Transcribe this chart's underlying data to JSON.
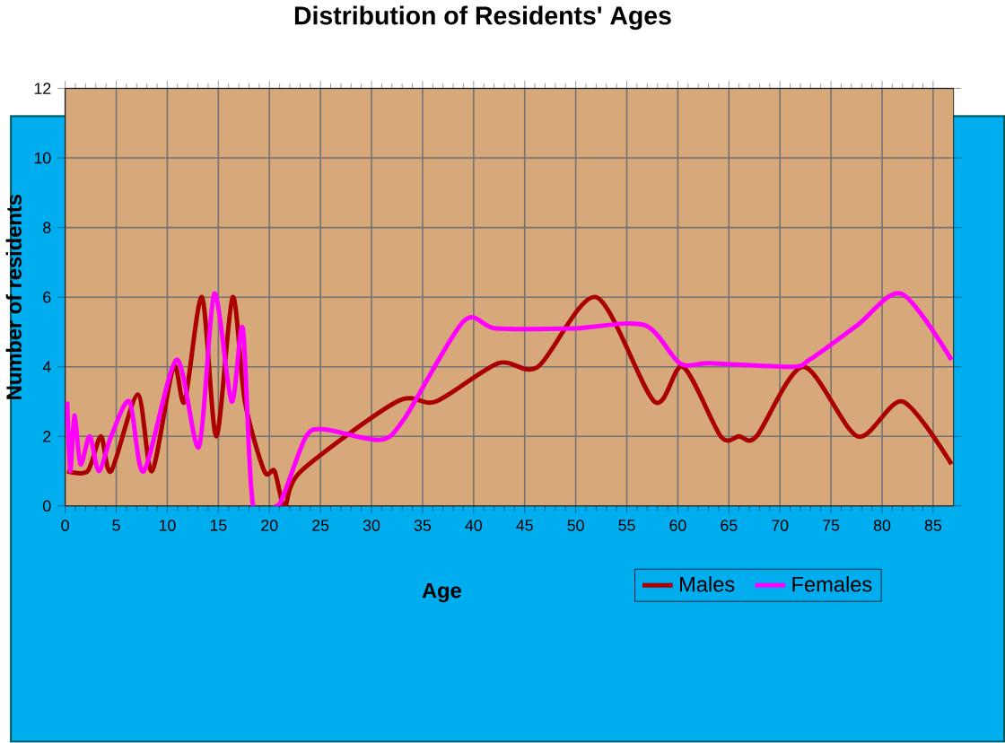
{
  "chart_data": {
    "type": "line",
    "title": "Distribution of Residents' Ages",
    "xlabel": "Age",
    "ylabel": "Number of residents",
    "xlim": [
      0,
      87
    ],
    "ylim": [
      0,
      12
    ],
    "xticks": [
      0,
      5,
      10,
      15,
      20,
      25,
      30,
      35,
      40,
      45,
      50,
      55,
      60,
      65,
      70,
      75,
      80,
      85
    ],
    "yticks": [
      0,
      2,
      4,
      6,
      8,
      10,
      12
    ],
    "grid": true,
    "legend": "bottom right",
    "marker": "none",
    "line_style": "solid",
    "series": [
      {
        "name": "Males",
        "color": "#aa0000",
        "x": [
          0.2,
          2.2,
          3.5,
          4.5,
          7.1,
          8.5,
          10.6,
          11.7,
          13.4,
          14.8,
          16.4,
          17.6,
          19.5,
          20.5,
          21.5,
          23.1,
          32.5,
          36.3,
          42.4,
          46.3,
          52,
          57.7,
          60.5,
          64.2,
          66,
          67.7,
          72.3,
          77.6,
          82,
          86.8
        ],
        "values": [
          1,
          1,
          2,
          1,
          3.2,
          1,
          4,
          3,
          6,
          2,
          6,
          3,
          1,
          1,
          0,
          1,
          3,
          3,
          4.1,
          4,
          6,
          3,
          4,
          2,
          2,
          2,
          4,
          2,
          3,
          1.2
        ]
      },
      {
        "name": "Females",
        "color": "#ff00ff",
        "x": [
          0.2,
          0.5,
          0.9,
          1.5,
          2.4,
          3.3,
          4.5,
          6.3,
          7.7,
          10.9,
          13.1,
          14.6,
          16.3,
          17.4,
          18.4,
          20.7,
          21.5,
          23.6,
          25.4,
          30.8,
          33.2,
          39,
          42.2,
          49.7,
          56.7,
          60.2,
          63.1,
          71.1,
          72.9,
          77.6,
          81.9,
          86.8
        ],
        "values": [
          3,
          1,
          2.6,
          1.2,
          2,
          1,
          2,
          3,
          1,
          4.2,
          1.7,
          6.1,
          3,
          5.1,
          0,
          0,
          0.4,
          2,
          2.2,
          1.9,
          2.5,
          5.3,
          5.1,
          5.1,
          5.2,
          4.1,
          4.1,
          4,
          4.2,
          5.2,
          6.1,
          4.2
        ]
      }
    ]
  }
}
